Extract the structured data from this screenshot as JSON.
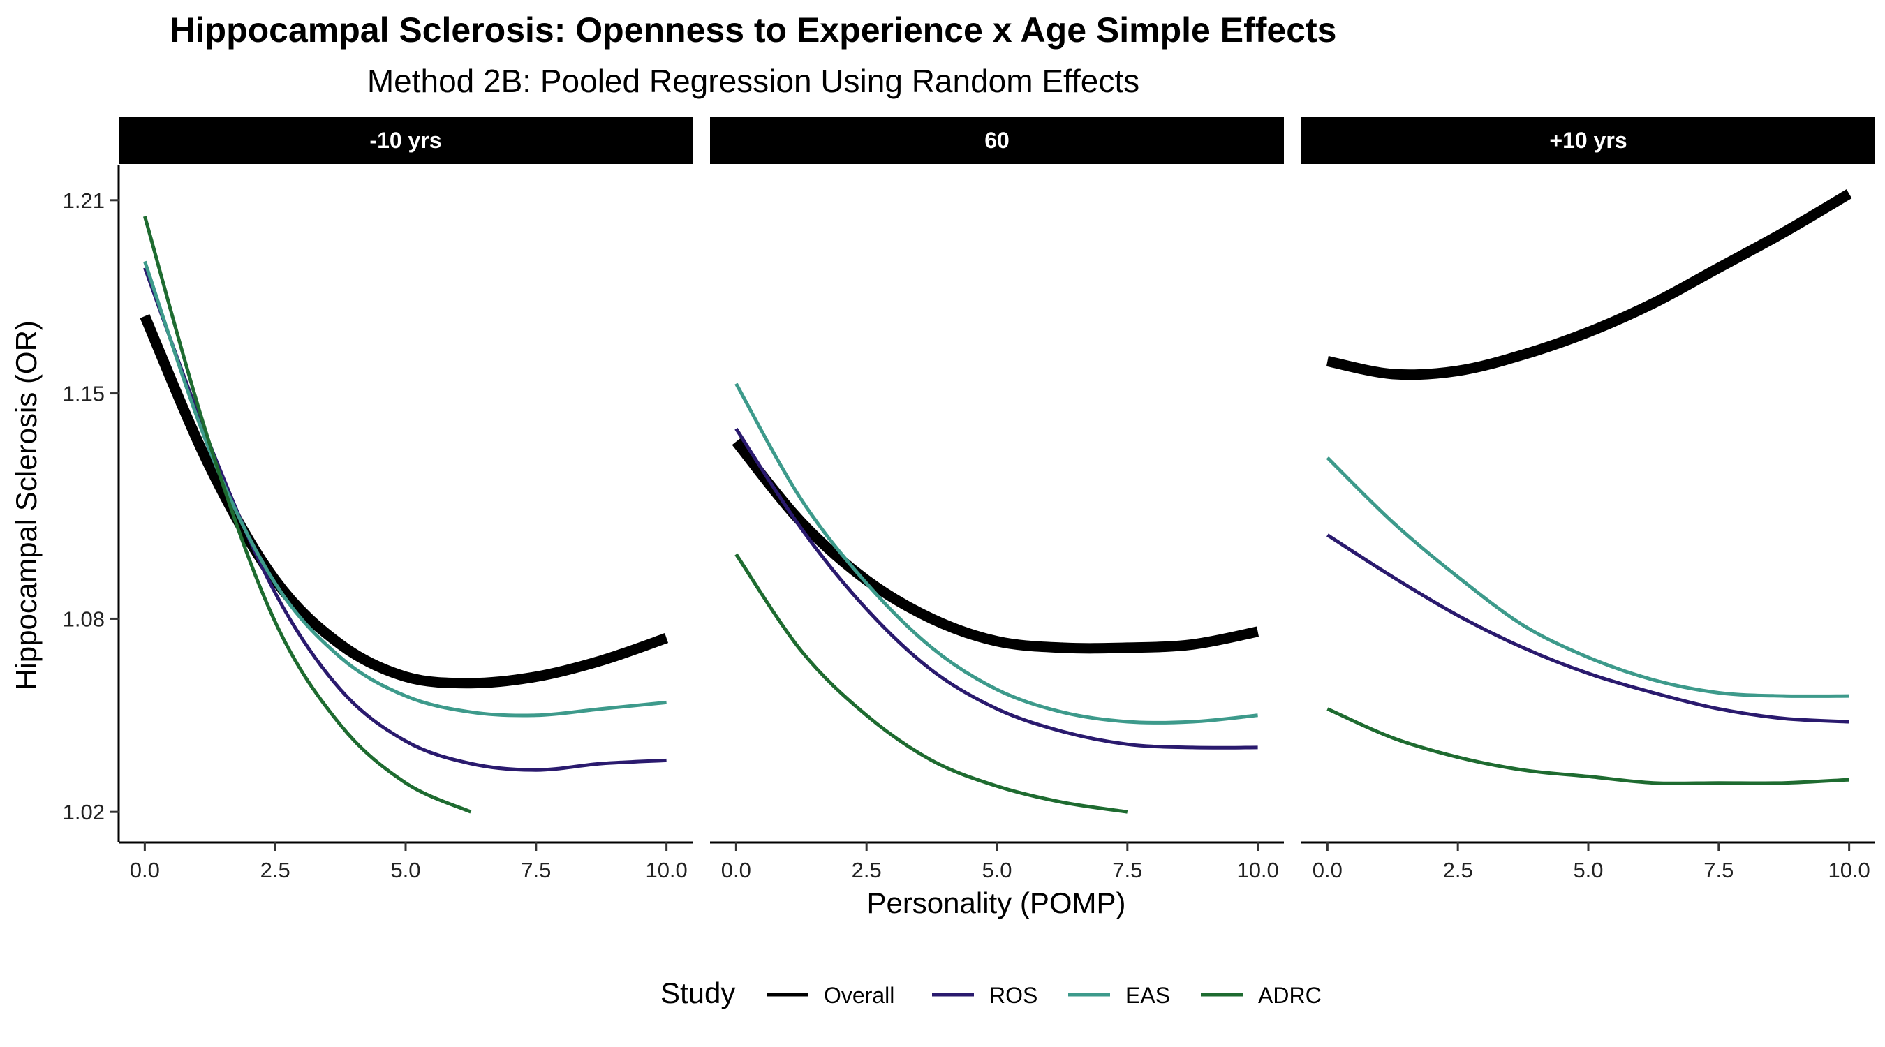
{
  "chart_data": {
    "type": "line",
    "title": "Hippocampal Sclerosis: Openness to Experience x Age Simple Effects",
    "subtitle": "Method 2B: Pooled Regression Using Random Effects",
    "xlabel": "Personality (POMP)",
    "ylabel": "Hippocampal Sclerosis (OR)",
    "xlim": [
      -0.5,
      10.5
    ],
    "ylim": [
      1.0105,
      1.2208
    ],
    "x_ticks": [
      0.0,
      2.5,
      5.0,
      7.5,
      10.0
    ],
    "x_tick_labels": [
      "0.0",
      "2.5",
      "5.0",
      "7.5",
      "10.0"
    ],
    "y_ticks": [
      1.02,
      1.08,
      1.15,
      1.21
    ],
    "y_tick_labels": [
      "1.02",
      "1.08",
      "1.15",
      "1.21"
    ],
    "grid": false,
    "legend": {
      "title": "Study",
      "position": "bottom",
      "entries": [
        {
          "name": "Overall",
          "color": "#000000"
        },
        {
          "name": "ROS",
          "color": "#2a1a6e"
        },
        {
          "name": "EAS",
          "color": "#3d9a8b"
        },
        {
          "name": "ADRC",
          "color": "#1e6b30"
        }
      ]
    },
    "facets": [
      {
        "label": "-10 yrs",
        "series": [
          {
            "name": "Overall",
            "x": [
              0,
              1.25,
              2.5,
              3.75,
              5,
              6.25,
              7.5,
              8.75,
              10
            ],
            "y": [
              1.174,
              1.127,
              1.092,
              1.072,
              1.062,
              1.06,
              1.062,
              1.067,
              1.074
            ]
          },
          {
            "name": "ROS",
            "x": [
              0,
              1.25,
              2.5,
              3.75,
              5,
              6.25,
              7.5,
              8.75,
              10
            ],
            "y": [
              1.189,
              1.134,
              1.088,
              1.058,
              1.042,
              1.035,
              1.033,
              1.035,
              1.036
            ]
          },
          {
            "name": "EAS",
            "x": [
              0,
              1.25,
              2.5,
              3.75,
              5,
              6.25,
              7.5,
              8.75,
              10
            ],
            "y": [
              1.191,
              1.132,
              1.091,
              1.068,
              1.056,
              1.051,
              1.05,
              1.052,
              1.054
            ]
          },
          {
            "name": "ADRC",
            "x": [
              0,
              1.25,
              2.5,
              3.75,
              5,
              6.25
            ],
            "y": [
              1.205,
              1.134,
              1.079,
              1.047,
              1.029,
              1.02
            ]
          }
        ]
      },
      {
        "label": "60",
        "series": [
          {
            "name": "Overall",
            "x": [
              0,
              1.25,
              2.5,
              3.75,
              5,
              6.25,
              7.5,
              8.75,
              10
            ],
            "y": [
              1.135,
              1.11,
              1.092,
              1.08,
              1.073,
              1.071,
              1.071,
              1.072,
              1.076
            ]
          },
          {
            "name": "ROS",
            "x": [
              0,
              1.25,
              2.5,
              3.75,
              5,
              6.25,
              7.5,
              8.75,
              10
            ],
            "y": [
              1.139,
              1.108,
              1.083,
              1.064,
              1.052,
              1.045,
              1.041,
              1.04,
              1.04
            ]
          },
          {
            "name": "EAS",
            "x": [
              0,
              1.25,
              2.5,
              3.75,
              5,
              6.25,
              7.5,
              8.75,
              10
            ],
            "y": [
              1.153,
              1.117,
              1.091,
              1.071,
              1.058,
              1.051,
              1.048,
              1.048,
              1.05
            ]
          },
          {
            "name": "ADRC",
            "x": [
              0,
              1.25,
              2.5,
              3.75,
              5,
              6.25,
              7.5
            ],
            "y": [
              1.1,
              1.07,
              1.05,
              1.036,
              1.028,
              1.023,
              1.02
            ]
          }
        ]
      },
      {
        "label": "+10 yrs",
        "series": [
          {
            "name": "Overall",
            "x": [
              0,
              1.25,
              2.5,
              3.75,
              5,
              6.25,
              7.5,
              8.75,
              10
            ],
            "y": [
              1.16,
              1.156,
              1.157,
              1.162,
              1.169,
              1.178,
              1.189,
              1.2,
              1.212
            ]
          },
          {
            "name": "ROS",
            "x": [
              0,
              1.25,
              2.5,
              3.75,
              5,
              6.25,
              7.5,
              8.75,
              10
            ],
            "y": [
              1.106,
              1.093,
              1.081,
              1.071,
              1.063,
              1.057,
              1.052,
              1.049,
              1.048
            ]
          },
          {
            "name": "EAS",
            "x": [
              0,
              1.25,
              2.5,
              3.75,
              5,
              6.25,
              7.5,
              8.75,
              10
            ],
            "y": [
              1.13,
              1.11,
              1.093,
              1.078,
              1.068,
              1.061,
              1.057,
              1.056,
              1.056
            ]
          },
          {
            "name": "ADRC",
            "x": [
              0,
              1.25,
              2.5,
              3.75,
              5,
              6.25,
              7.5,
              8.75,
              10
            ],
            "y": [
              1.052,
              1.043,
              1.037,
              1.033,
              1.031,
              1.029,
              1.029,
              1.029,
              1.03
            ]
          }
        ]
      }
    ]
  }
}
